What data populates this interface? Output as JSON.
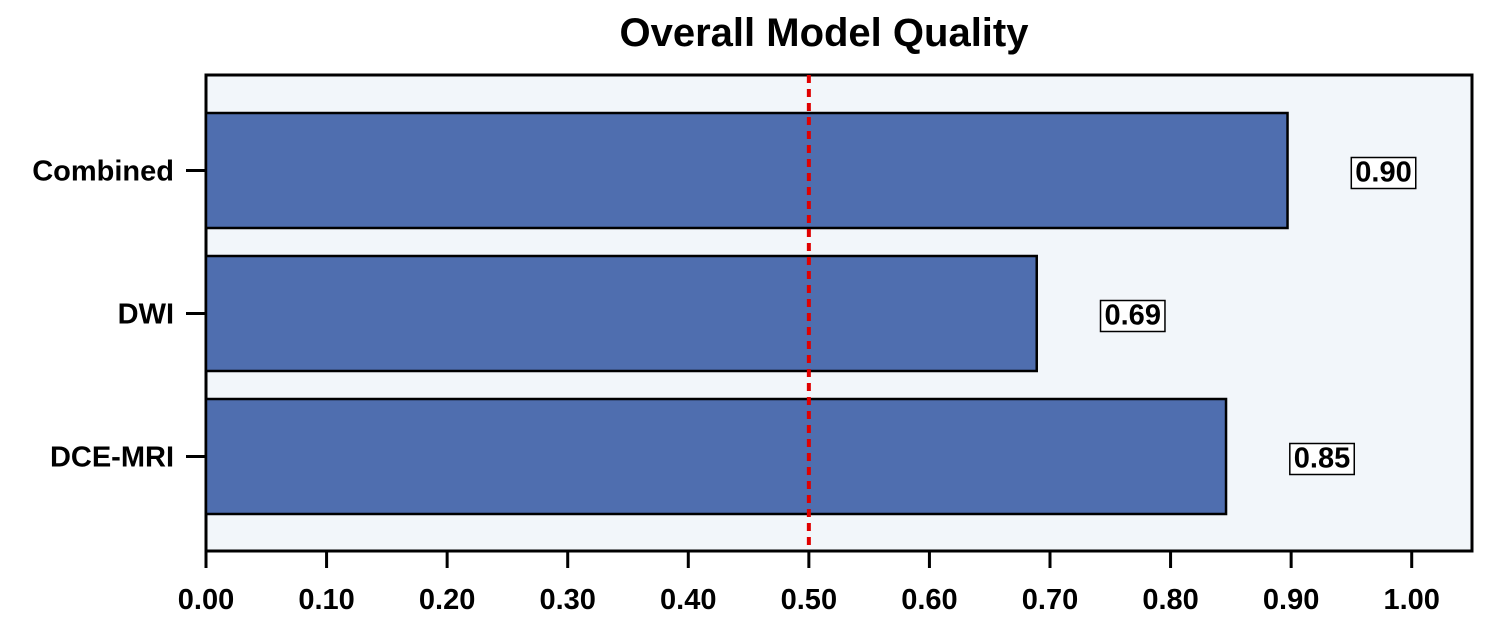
{
  "chart_data": {
    "type": "bar",
    "orientation": "horizontal",
    "title": "Overall Model Quality",
    "xlabel": "",
    "ylabel": "",
    "categories": [
      "Combined",
      "DWI",
      "DCE-MRI"
    ],
    "values": [
      0.897,
      0.689,
      0.846
    ],
    "value_labels": [
      "0.90",
      "0.69",
      "0.85"
    ],
    "xlim": [
      0,
      1.05
    ],
    "x_ticks": [
      0,
      0.1,
      0.2,
      0.3,
      0.4,
      0.5,
      0.6,
      0.7,
      0.8,
      0.9,
      1.0
    ],
    "x_tick_labels": [
      "0.00",
      "0.10",
      "0.20",
      "0.30",
      "0.40",
      "0.50",
      "0.60",
      "0.70",
      "0.80",
      "0.90",
      "1.00"
    ],
    "reference_line": {
      "x": 0.5,
      "style": "dotted"
    },
    "grid": false,
    "legend": false
  },
  "colors": {
    "bar_fill": "#4F6EAF",
    "plot_background": "#F2F6FA",
    "reference_line": "#E00000",
    "axis": "#000000"
  }
}
